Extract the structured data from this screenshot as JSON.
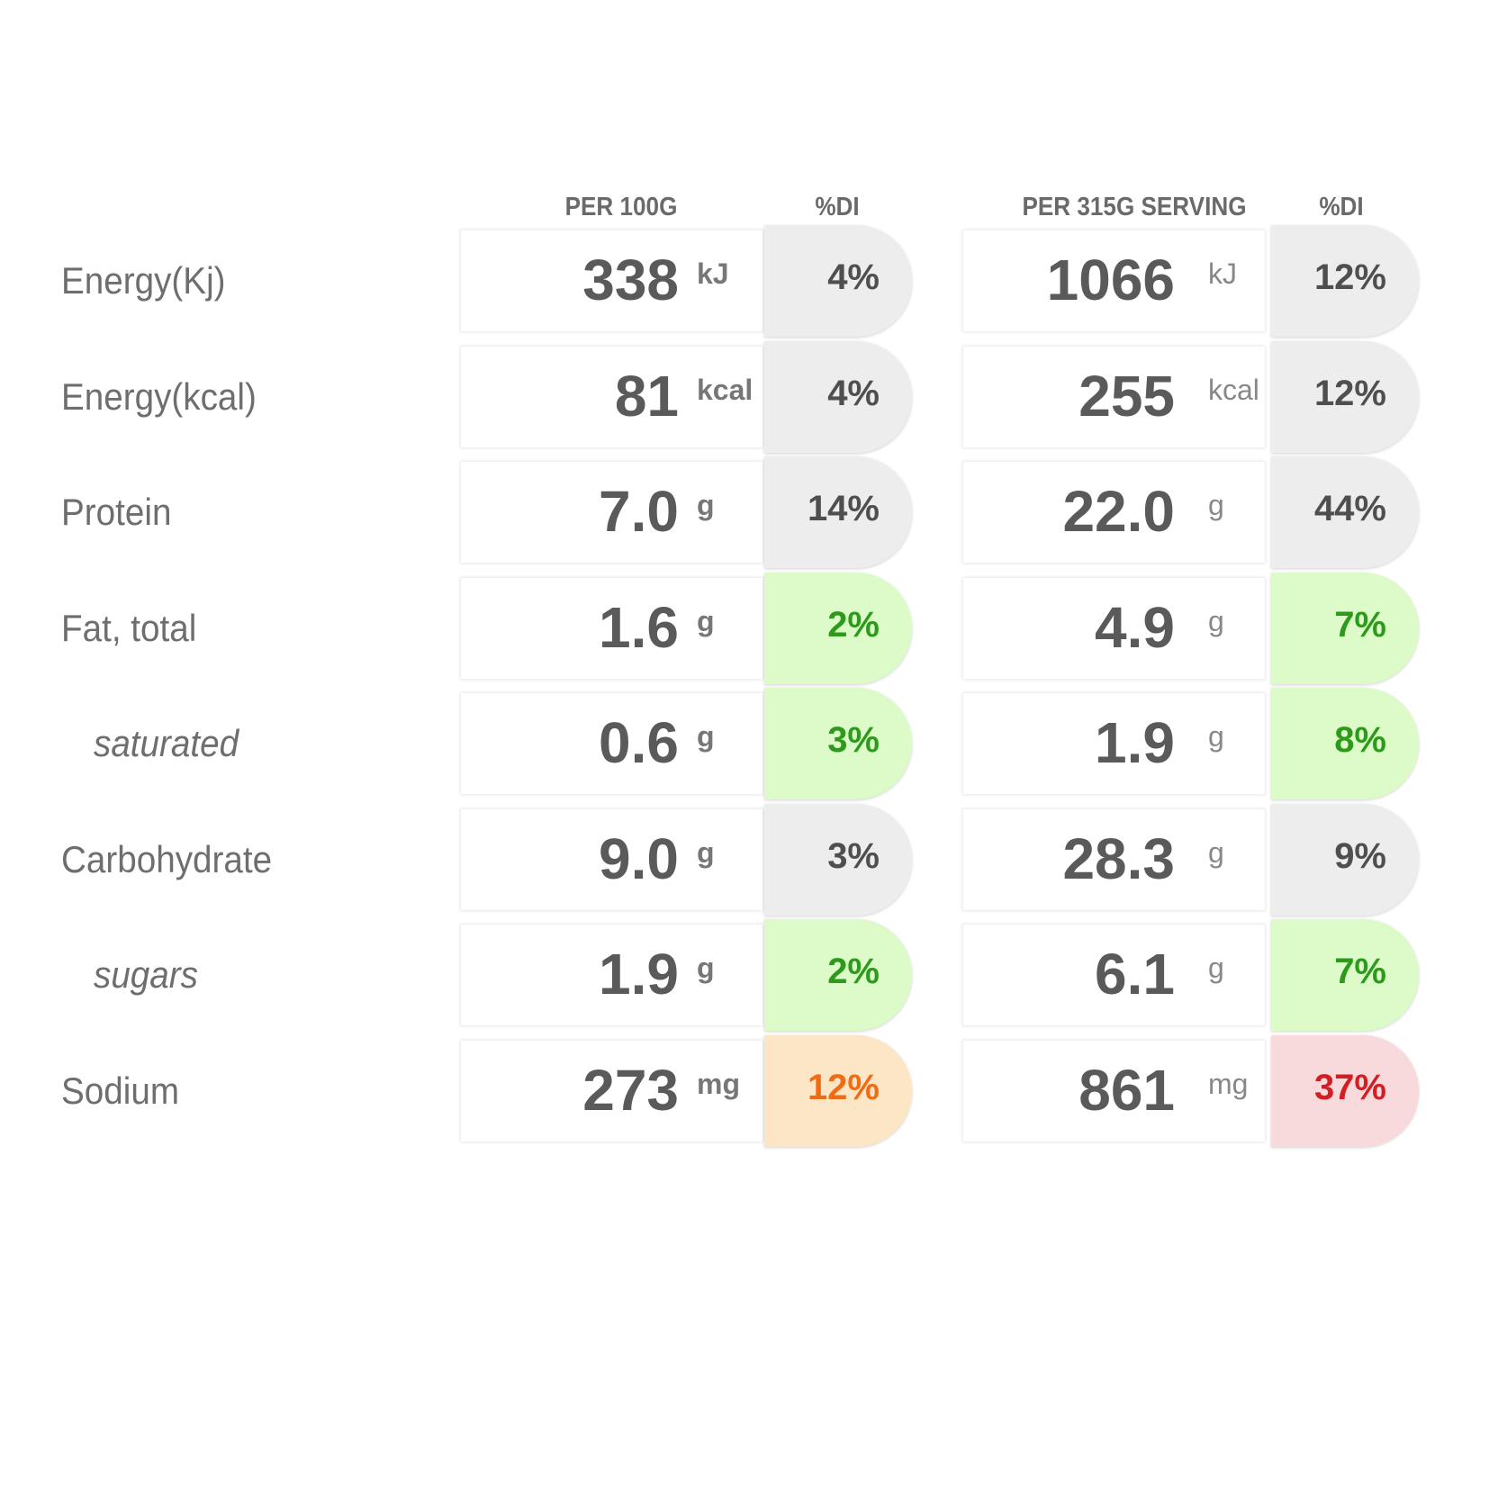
{
  "headers": {
    "per100": "PER 100G",
    "di1": "%DI",
    "perServing": "PER 315G SERVING",
    "di2": "%DI"
  },
  "rows": [
    {
      "label": "Energy(Kj)",
      "sub": false,
      "per100": "338",
      "per100_unit": "kJ",
      "di100": "4%",
      "di100_level": "neutral",
      "serving": "1066",
      "serving_unit": "kJ",
      "diServing": "12%",
      "diServing_level": "neutral"
    },
    {
      "label": "Energy(kcal)",
      "sub": false,
      "per100": "81",
      "per100_unit": "kcal",
      "di100": "4%",
      "di100_level": "neutral",
      "serving": "255",
      "serving_unit": "kcal",
      "diServing": "12%",
      "diServing_level": "neutral"
    },
    {
      "label": "Protein",
      "sub": false,
      "per100": "7.0",
      "per100_unit": "g",
      "di100": "14%",
      "di100_level": "neutral",
      "serving": "22.0",
      "serving_unit": "g",
      "diServing": "44%",
      "diServing_level": "neutral"
    },
    {
      "label": "Fat, total",
      "sub": false,
      "per100": "1.6",
      "per100_unit": "g",
      "di100": "2%",
      "di100_level": "low",
      "serving": "4.9",
      "serving_unit": "g",
      "diServing": "7%",
      "diServing_level": "low"
    },
    {
      "label": "saturated",
      "sub": true,
      "per100": "0.6",
      "per100_unit": "g",
      "di100": "3%",
      "di100_level": "low",
      "serving": "1.9",
      "serving_unit": "g",
      "diServing": "8%",
      "diServing_level": "low"
    },
    {
      "label": "Carbohydrate",
      "sub": false,
      "per100": "9.0",
      "per100_unit": "g",
      "di100": "3%",
      "di100_level": "neutral",
      "serving": "28.3",
      "serving_unit": "g",
      "diServing": "9%",
      "diServing_level": "neutral"
    },
    {
      "label": "sugars",
      "sub": true,
      "per100": "1.9",
      "per100_unit": "g",
      "di100": "2%",
      "di100_level": "low",
      "serving": "6.1",
      "serving_unit": "g",
      "diServing": "7%",
      "diServing_level": "low"
    },
    {
      "label": "Sodium",
      "sub": false,
      "per100": "273",
      "per100_unit": "mg",
      "di100": "12%",
      "di100_level": "medium",
      "serving": "861",
      "serving_unit": "mg",
      "diServing": "37%",
      "diServing_level": "high"
    }
  ],
  "colors": {
    "neutral": "#ededed",
    "low": "#dcfbc8",
    "low_text": "#2e9a1c",
    "medium": "#fde6c6",
    "medium_text": "#ef6c16",
    "high": "#f9dadc",
    "high_text": "#d21f24"
  }
}
